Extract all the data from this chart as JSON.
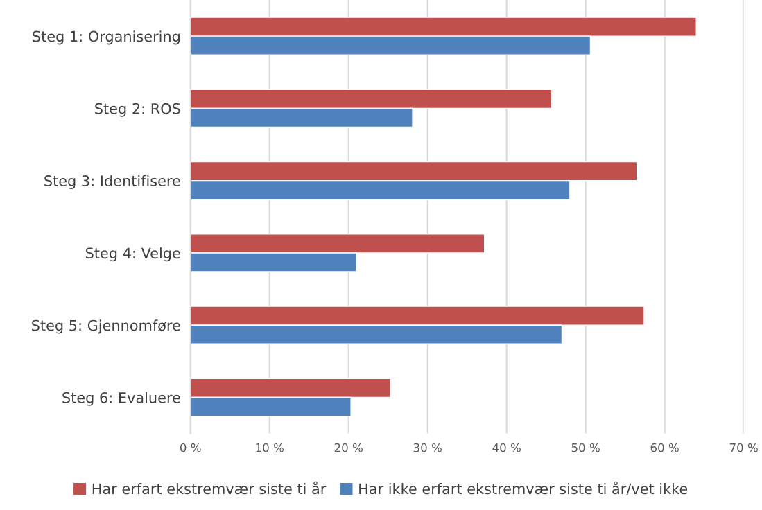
{
  "chart_data": {
    "type": "bar",
    "orientation": "horizontal",
    "categories": [
      "Steg 1: Organisering",
      "Steg 2: ROS",
      "Steg 3: Identifisere",
      "Steg 4: Velge",
      "Steg 5: Gjennomføre",
      "Steg 6: Evaluere"
    ],
    "series": [
      {
        "name": "Har erfart ekstremvær siste ti år",
        "color": "#c0504d",
        "values": [
          64.0,
          45.7,
          56.5,
          37.2,
          57.4,
          25.3
        ]
      },
      {
        "name": "Har ikke erfart ekstremvær siste ti år/vet ikke",
        "color": "#4f81bd",
        "values": [
          50.6,
          28.1,
          48.0,
          21.0,
          47.0,
          20.3
        ]
      }
    ],
    "xlim": [
      0,
      70
    ],
    "xticks": [
      {
        "value": 0,
        "label": "0 %"
      },
      {
        "value": 10,
        "label": "10 %"
      },
      {
        "value": 20,
        "label": "20 %"
      },
      {
        "value": 30,
        "label": "30 %"
      },
      {
        "value": 40,
        "label": "40 %"
      },
      {
        "value": 50,
        "label": "50 %"
      },
      {
        "value": 60,
        "label": "60 %"
      },
      {
        "value": 70,
        "label": "70 %"
      }
    ],
    "grid": "x",
    "legend": "bottom"
  }
}
